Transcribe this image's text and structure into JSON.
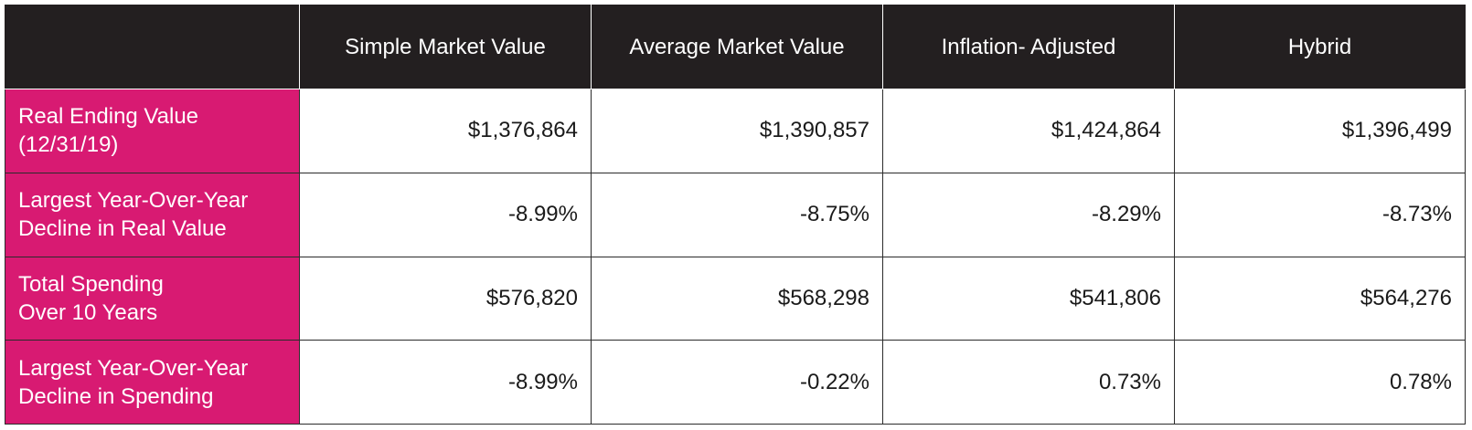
{
  "table": {
    "columns": [
      "",
      "Simple Market Value",
      "Average Market Value",
      "Inflation- Adjusted",
      "Hybrid"
    ],
    "rows": [
      {
        "label": "Real Ending Value\n(12/31/19)",
        "values": [
          "$1,376,864",
          "$1,390,857",
          "$1,424,864",
          "$1,396,499"
        ]
      },
      {
        "label": "Largest Year-Over-Year\nDecline in Real Value",
        "values": [
          "-8.99%",
          "-8.75%",
          "-8.29%",
          "-8.73%"
        ]
      },
      {
        "label": "Total Spending\nOver 10 Years",
        "values": [
          "$576,820",
          "$568,298",
          "$541,806",
          "$564,276"
        ]
      },
      {
        "label": "Largest Year-Over-Year\nDecline in Spending",
        "values": [
          "-8.99%",
          "-0.22%",
          "0.73%",
          "0.78%"
        ]
      }
    ]
  },
  "colors": {
    "header_bg": "#231f20",
    "label_bg": "#d81a72",
    "header_text": "#ffffff",
    "cell_text": "#1a1a1a"
  }
}
